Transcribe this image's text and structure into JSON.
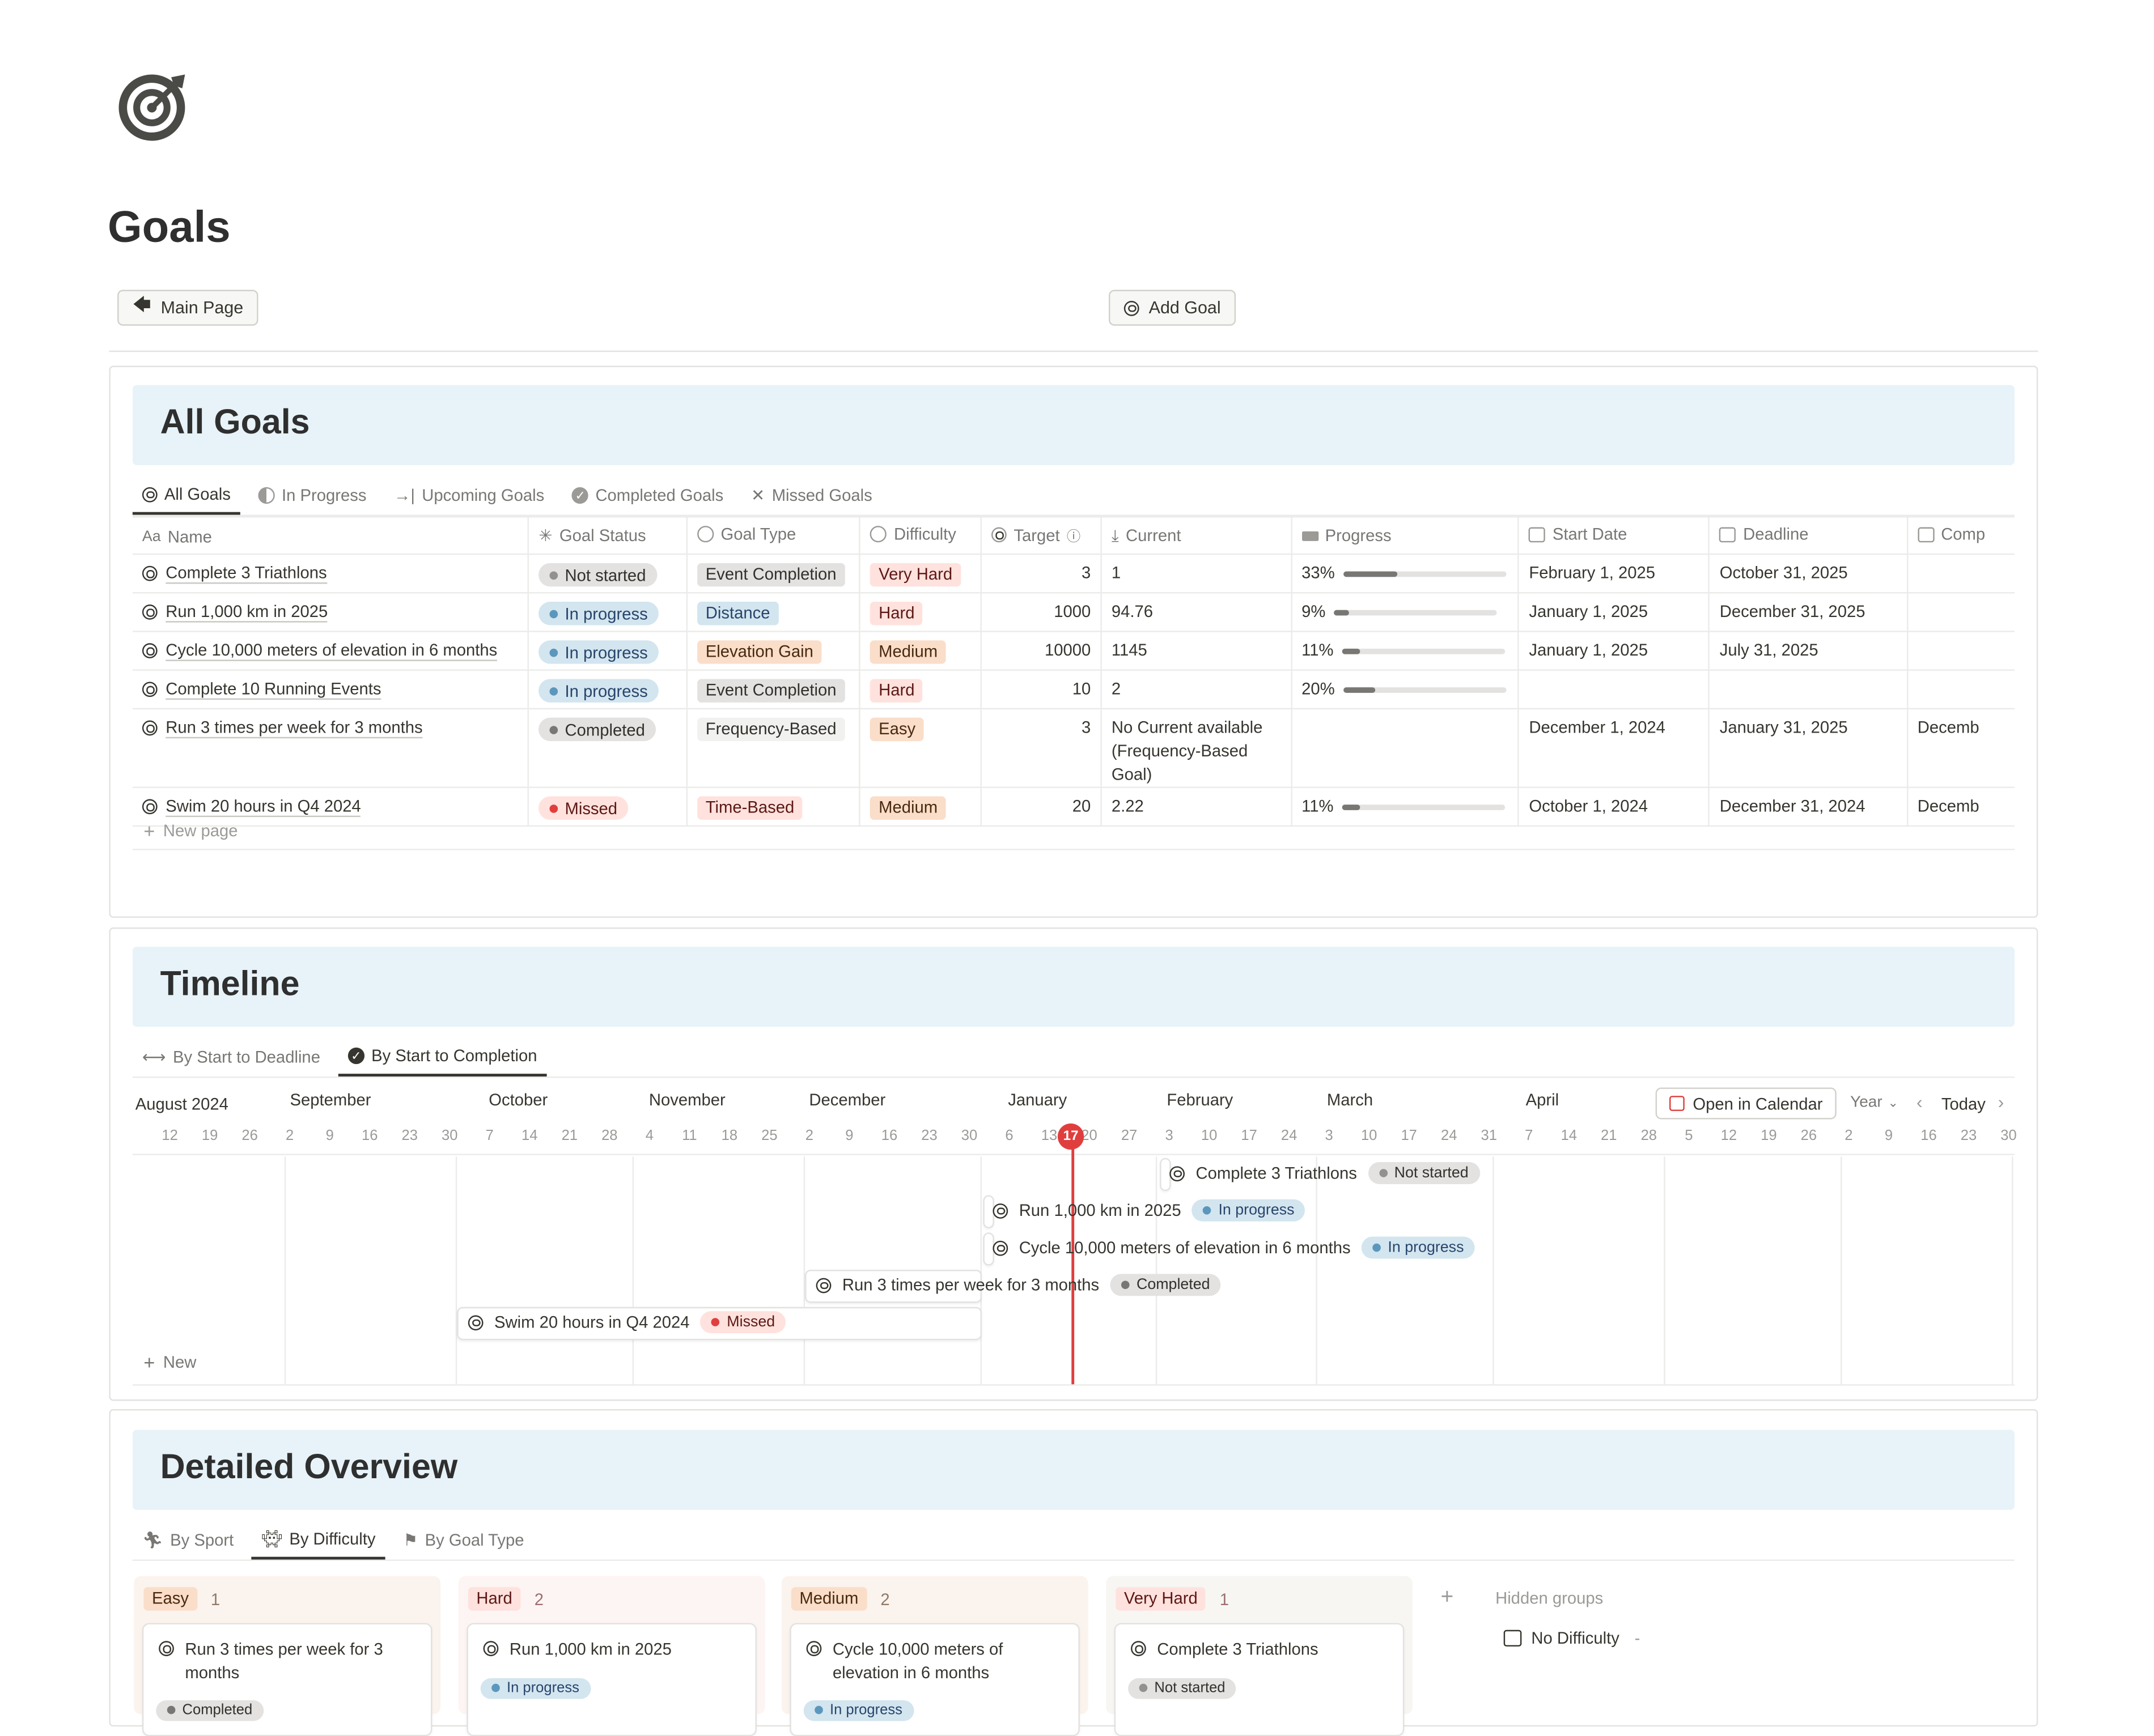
{
  "page": {
    "title": "Goals",
    "icon": "target-icon"
  },
  "buttons": {
    "main_page": "Main Page",
    "add_goal": "Add Goal"
  },
  "all_goals": {
    "title": "All Goals",
    "tabs": [
      "All Goals",
      "In Progress",
      "Upcoming Goals",
      "Completed Goals",
      "Missed Goals"
    ],
    "columns": [
      "Name",
      "Goal Status",
      "Goal Type",
      "Difficulty",
      "Target",
      "Current",
      "Progress",
      "Start Date",
      "Deadline",
      "Comp"
    ],
    "rows": [
      {
        "name": "Complete 3 Triathlons",
        "status": "Not started",
        "type": "Event Completion",
        "difficulty": "Very Hard",
        "target": "3",
        "current": "1",
        "current2": "",
        "progress": 0.33,
        "progress_label": "33%",
        "start": "February 1, 2025",
        "deadline": "October 31, 2025",
        "comp": ""
      },
      {
        "name": "Run 1,000 km in 2025",
        "status": "In progress",
        "type": "Distance",
        "difficulty": "Hard",
        "target": "1000",
        "current": "94.76",
        "current2": "",
        "progress": 0.09,
        "progress_label": "9%",
        "start": "January 1, 2025",
        "deadline": "December 31, 2025",
        "comp": ""
      },
      {
        "name": "Cycle 10,000 meters of elevation in 6 months",
        "status": "In progress",
        "type": "Elevation Gain",
        "difficulty": "Medium",
        "target": "10000",
        "current": "1145",
        "current2": "",
        "progress": 0.11,
        "progress_label": "11%",
        "start": "January 1, 2025",
        "deadline": "July 31, 2025",
        "comp": ""
      },
      {
        "name": "Complete 10 Running Events",
        "status": "In progress",
        "type": "Event Completion",
        "difficulty": "Hard",
        "target": "10",
        "current": "2",
        "current2": "",
        "progress": 0.2,
        "progress_label": "20%",
        "start": "",
        "deadline": "",
        "comp": ""
      },
      {
        "name": "Run 3 times per week for 3 months",
        "status": "Completed",
        "type": "Frequency-Based",
        "difficulty": "Easy",
        "target": "3",
        "current": "No Current available",
        "current2": "(Frequency-Based Goal)",
        "progress": null,
        "progress_label": "",
        "start": "December 1, 2024",
        "deadline": "January 31, 2025",
        "comp": "Decemb"
      },
      {
        "name": "Swim 20 hours in Q4 2024",
        "status": "Missed",
        "type": "Time-Based",
        "difficulty": "Medium",
        "target": "20",
        "current": "2.22",
        "current2": "",
        "progress": 0.11,
        "progress_label": "11%",
        "start": "October 1, 2024",
        "deadline": "December 31, 2024",
        "comp": "Decemb"
      }
    ],
    "new_page": "New page"
  },
  "timeline": {
    "title": "Timeline",
    "tabs": [
      "By Start to Deadline",
      "By Start to Completion"
    ],
    "months": [
      "August 2024",
      "September",
      "October",
      "November",
      "December",
      "January",
      "February",
      "March",
      "April"
    ],
    "days": [
      "12",
      "19",
      "26",
      "2",
      "9",
      "16",
      "23",
      "30",
      "7",
      "14",
      "21",
      "28",
      "4",
      "11",
      "18",
      "25",
      "2",
      "9",
      "16",
      "23",
      "30",
      "6",
      "13",
      "20",
      "27",
      "3",
      "10",
      "17",
      "24",
      "3",
      "10",
      "17",
      "24",
      "31",
      "7",
      "14",
      "21",
      "28",
      "5",
      "12",
      "19",
      "26",
      "2",
      "9",
      "16",
      "23",
      "30"
    ],
    "today": "17",
    "open_calendar": "Open in Calendar",
    "range": "Year",
    "today_btn": "Today",
    "items": [
      {
        "name": "Complete 3 Triathlons",
        "status": "Not started"
      },
      {
        "name": "Run 1,000 km in 2025",
        "status": "In progress"
      },
      {
        "name": "Cycle 10,000 meters of elevation in 6 months",
        "status": "In progress"
      },
      {
        "name": "Run 3 times per week for 3 months",
        "status": "Completed"
      },
      {
        "name": "Swim 20 hours in Q4 2024",
        "status": "Missed"
      }
    ],
    "new": "New"
  },
  "overview": {
    "title": "Detailed Overview",
    "tabs": [
      "By Sport",
      "By Difficulty",
      "By Goal Type"
    ],
    "groups": [
      {
        "label": "Easy",
        "count": "1",
        "card": "Run 3 times per week for 3 months",
        "status": "Completed"
      },
      {
        "label": "Hard",
        "count": "2",
        "card": "Run 1,000 km in 2025",
        "status": "In progress"
      },
      {
        "label": "Medium",
        "count": "2",
        "card": "Cycle 10,000 meters of elevation in 6 months",
        "status": "In progress"
      },
      {
        "label": "Very Hard",
        "count": "1",
        "card": "Complete 3 Triathlons",
        "status": "Not started"
      }
    ],
    "hidden_groups": "Hidden groups",
    "no_difficulty": "No Difficulty",
    "no_difficulty_count": "-"
  },
  "colors": {
    "accent_banner": "#e7f3f8",
    "today_red": "#e03e3e",
    "progress_fill": "#787774"
  }
}
